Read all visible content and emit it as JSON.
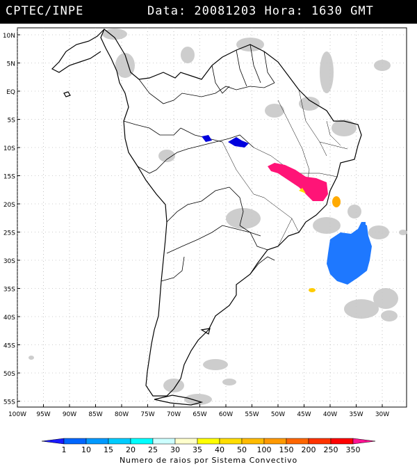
{
  "header": {
    "agency": "CPTEC/INPE",
    "datetime": "Data: 20081203 Hora: 1630 GMT"
  },
  "map": {
    "lat_labels": [
      "10N",
      "5N",
      "EQ",
      "5S",
      "10S",
      "15S",
      "20S",
      "25S",
      "30S",
      "35S",
      "40S",
      "45S",
      "50S",
      "55S"
    ],
    "lon_labels": [
      "100W",
      "95W",
      "90W",
      "85W",
      "80W",
      "75W",
      "70W",
      "65W",
      "60W",
      "55W",
      "50W",
      "45W",
      "40W",
      "35W",
      "30W"
    ]
  },
  "legend": {
    "values": [
      "1",
      "10",
      "15",
      "20",
      "25",
      "30",
      "35",
      "40",
      "50",
      "100",
      "150",
      "200",
      "250",
      "350"
    ],
    "colors": [
      "#1a1aff",
      "#0066ff",
      "#0099ff",
      "#00ccff",
      "#00ffff",
      "#ccffff",
      "#ffffcc",
      "#ffff00",
      "#ffdd00",
      "#ffbb00",
      "#ff9900",
      "#ff6600",
      "#ff3300",
      "#ff0000",
      "#ff1493"
    ],
    "caption": "Numero de raios por Sistema Convectivo"
  },
  "colors": {
    "cloud": "#c8c8c8",
    "blue_system": "#1e78ff",
    "pink_system": "#ff1477",
    "orange_system": "#ffaa00",
    "yellow_system": "#ffe000"
  }
}
